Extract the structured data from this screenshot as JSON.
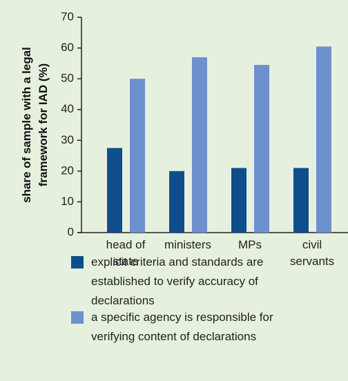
{
  "chart_data": {
    "type": "bar",
    "y_label": "share of sample with a legal framework for IAD (%)",
    "categories": [
      "head of state",
      "ministers",
      "MPs",
      "civil servants"
    ],
    "series": [
      {
        "name": "explicit criteria and standards are established to verify accuracy of declarations",
        "color": "#0e4e8c",
        "values": [
          27.5,
          20,
          21,
          21
        ]
      },
      {
        "name": "a specific agency is responsible for verifying content of declarations",
        "color": "#6d90cf",
        "values": [
          50,
          57,
          54.5,
          60.5
        ]
      }
    ],
    "ylim": [
      0,
      70
    ],
    "yticks": [
      0,
      10,
      20,
      30,
      40,
      50,
      60,
      70
    ],
    "grid": false
  }
}
